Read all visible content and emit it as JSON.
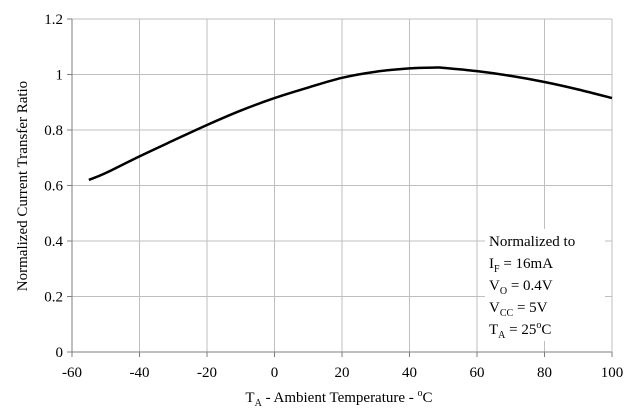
{
  "chart_data": {
    "type": "line",
    "xlabel": {
      "prefix": "T",
      "subscript": "A",
      "middle": " - Ambient Temperature - ",
      "superscript": "o",
      "suffix": "C"
    },
    "ylabel": "Normalized Current Transfer Ratio",
    "xlim": [
      -60,
      100
    ],
    "ylim": [
      0,
      1.2
    ],
    "x_ticks": [
      -60,
      -40,
      -20,
      0,
      20,
      40,
      60,
      80,
      100
    ],
    "y_ticks": [
      0,
      0.2,
      0.4,
      0.6,
      0.8,
      1,
      1.2
    ],
    "x_tick_labels": [
      "-60",
      "-40",
      "-20",
      "0",
      "20",
      "40",
      "60",
      "80",
      "100"
    ],
    "y_tick_labels": [
      "0",
      "0.2",
      "0.4",
      "0.6",
      "0.8",
      "1",
      "1.2"
    ],
    "grid": true,
    "series": [
      {
        "x": [
          -55,
          -50,
          -40,
          -30,
          -20,
          -10,
          0,
          10,
          20,
          30,
          40,
          48,
          50,
          60,
          70,
          80,
          90,
          100
        ],
        "y": [
          0.62,
          0.645,
          0.705,
          0.762,
          0.818,
          0.87,
          0.915,
          0.953,
          0.988,
          1.01,
          1.022,
          1.025,
          1.024,
          1.012,
          0.995,
          0.973,
          0.946,
          0.915
        ],
        "color": "#000000"
      }
    ],
    "annotation": {
      "title": "Normalized to",
      "lines": [
        {
          "base": "I",
          "sub": "F",
          "rest": " = 16mA"
        },
        {
          "base": "V",
          "sub": "O",
          "rest": " = 0.4V"
        },
        {
          "base": "V",
          "sub": "CC",
          "rest": " = 5V"
        },
        {
          "base": "T",
          "sub": "A",
          "rest": " = 25",
          "sup": "o",
          "tail": "C"
        }
      ]
    }
  }
}
